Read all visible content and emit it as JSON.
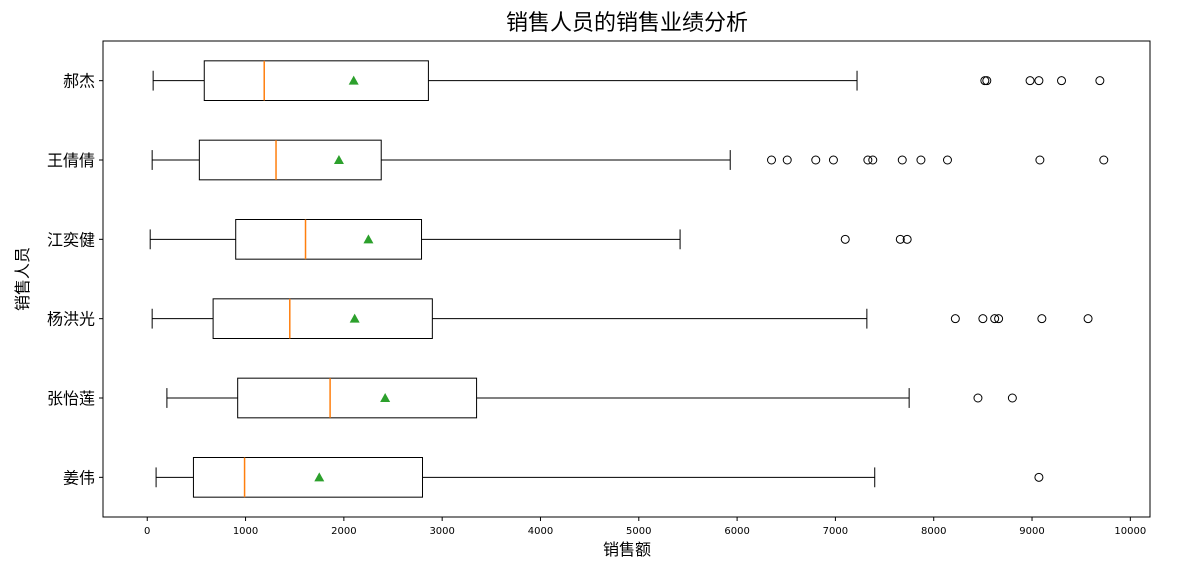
{
  "chart_data": {
    "type": "boxplot",
    "orientation": "horizontal",
    "title": "销售人员的销售业绩分析",
    "xlabel": "销售额",
    "ylabel": "销售人员",
    "xlim": [
      -450,
      10200
    ],
    "xticks": [
      0,
      1000,
      2000,
      3000,
      4000,
      5000,
      6000,
      7000,
      8000,
      9000,
      10000
    ],
    "xtick_labels": [
      "0",
      "1000",
      "2000",
      "3000",
      "4000",
      "5000",
      "6000",
      "7000",
      "8000",
      "9000",
      "10000"
    ],
    "grid": false,
    "colors": {
      "box": "#000000",
      "median": "#ff7f0e",
      "mean": "#2ca02c",
      "outlier": "#000000"
    },
    "series": [
      {
        "name": "姜伟",
        "whisker_low": 90,
        "q1": 470,
        "median": 990,
        "q3": 2800,
        "whisker_high": 7400,
        "mean": 1750,
        "outliers": [
          9070
        ]
      },
      {
        "name": "张怡莲",
        "whisker_low": 200,
        "q1": 920,
        "median": 1860,
        "q3": 3350,
        "whisker_high": 7750,
        "mean": 2420,
        "outliers": [
          8450,
          8800
        ]
      },
      {
        "name": "杨洪光",
        "whisker_low": 50,
        "q1": 670,
        "median": 1450,
        "q3": 2900,
        "whisker_high": 7320,
        "mean": 2110,
        "outliers": [
          8220,
          8500,
          8620,
          8660,
          9100,
          9570
        ]
      },
      {
        "name": "江奕健",
        "whisker_low": 30,
        "q1": 900,
        "median": 1610,
        "q3": 2790,
        "whisker_high": 5420,
        "mean": 2250,
        "outliers": [
          7100,
          7660,
          7730
        ]
      },
      {
        "name": "王倩倩",
        "whisker_low": 50,
        "q1": 530,
        "median": 1310,
        "q3": 2380,
        "whisker_high": 5930,
        "mean": 1950,
        "outliers": [
          6350,
          6510,
          6800,
          6980,
          7330,
          7380,
          7680,
          7870,
          8140,
          9080,
          9730
        ]
      },
      {
        "name": "郝杰",
        "whisker_low": 60,
        "q1": 580,
        "median": 1190,
        "q3": 2860,
        "whisker_high": 7220,
        "mean": 2100,
        "outliers": [
          8520,
          8540,
          8980,
          9070,
          9300,
          9690
        ]
      }
    ]
  }
}
